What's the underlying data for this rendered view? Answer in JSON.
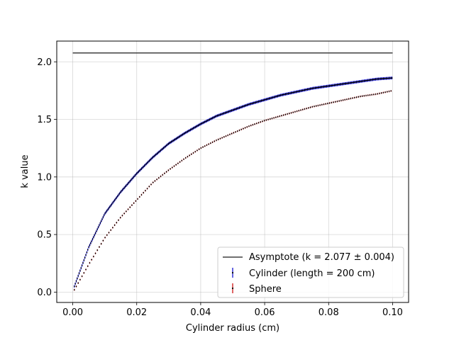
{
  "chart_data": {
    "type": "scatter",
    "xlabel": "Cylinder radius (cm)",
    "ylabel": "k value",
    "xlim": [
      -0.005,
      0.105
    ],
    "ylim": [
      -0.09,
      2.18
    ],
    "xticks": [
      0.0,
      0.02,
      0.04,
      0.06,
      0.08,
      0.1
    ],
    "xtick_labels": [
      "0.00",
      "0.02",
      "0.04",
      "0.06",
      "0.08",
      "0.10"
    ],
    "yticks": [
      0.0,
      0.5,
      1.0,
      1.5,
      2.0
    ],
    "ytick_labels": [
      "0.0",
      "0.5",
      "1.0",
      "1.5",
      "2.0"
    ],
    "grid": true,
    "legend_position": "lower-right",
    "asymptote": {
      "label": "Asymptote (k = 2.077 ± 0.004)",
      "y": 2.077,
      "x_range": [
        0.0,
        0.1
      ],
      "color": "#404040"
    },
    "series": [
      {
        "name": "Cylinder (length = 200 cm)",
        "color": "#0000cc",
        "marker": "errorbar",
        "x": [
          0.0005,
          0.005,
          0.01,
          0.015,
          0.02,
          0.025,
          0.03,
          0.035,
          0.04,
          0.045,
          0.05,
          0.055,
          0.06,
          0.065,
          0.07,
          0.075,
          0.08,
          0.085,
          0.09,
          0.095,
          0.1
        ],
        "y": [
          0.05,
          0.39,
          0.68,
          0.87,
          1.03,
          1.17,
          1.29,
          1.38,
          1.46,
          1.53,
          1.58,
          1.63,
          1.67,
          1.71,
          1.74,
          1.77,
          1.79,
          1.81,
          1.83,
          1.85,
          1.86
        ]
      },
      {
        "name": "Sphere",
        "color": "#cc0000",
        "marker": "errorbar",
        "x": [
          0.0005,
          0.005,
          0.01,
          0.015,
          0.02,
          0.025,
          0.03,
          0.035,
          0.04,
          0.045,
          0.05,
          0.055,
          0.06,
          0.065,
          0.07,
          0.075,
          0.08,
          0.085,
          0.09,
          0.095,
          0.1
        ],
        "y": [
          0.02,
          0.24,
          0.47,
          0.65,
          0.8,
          0.95,
          1.06,
          1.16,
          1.25,
          1.32,
          1.38,
          1.44,
          1.49,
          1.53,
          1.57,
          1.61,
          1.64,
          1.67,
          1.7,
          1.72,
          1.75
        ]
      }
    ]
  }
}
